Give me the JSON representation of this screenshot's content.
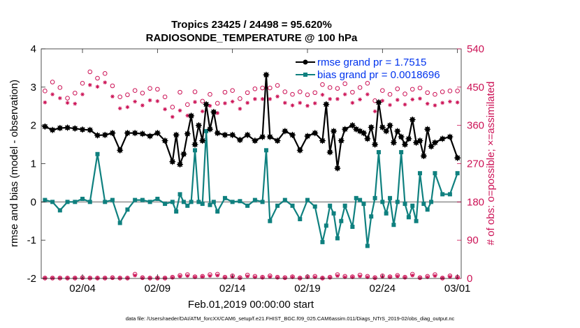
{
  "chart_data": {
    "type": "line",
    "title": "Tropics 23425 / 24498 = 95.620%",
    "subtitle": "RADIOSONDE_TEMPERATURE @ 100 hPa",
    "xlabel": "Feb.01,2019 00:00:00 start",
    "ylabel_left": "rmse and bias (model - observation)",
    "ylabel_right": "# of obs: o=possible; ×=assimilated",
    "footnote": "data file: /Users/raeder/DAI/ATM_forcXX/CAM6_setup/f.e21.FHIST_BGC.f09_025.CAM6assim.011/Diags_NTrS_2019-02/obs_diag_output.nc",
    "xticks": [
      "02/04",
      "02/09",
      "02/14",
      "02/19",
      "02/24",
      "03/01"
    ],
    "xtick_days": [
      3,
      8,
      13,
      18,
      23,
      28
    ],
    "xlim": [
      0.25,
      28.25
    ],
    "ylim_left": [
      -2,
      4
    ],
    "yticks_left": [
      "-2",
      "-1",
      "0",
      "1",
      "2",
      "3",
      "4"
    ],
    "ylim_right": [
      0,
      540
    ],
    "yticks_right": [
      "0",
      "90",
      "180",
      "270",
      "360",
      "450",
      "540"
    ],
    "colors": {
      "rmse": "#000000",
      "bias": "#0f807f",
      "obs": "#cc1155",
      "legend_text": "#0033ee",
      "zero_line": "#a6a6a6"
    },
    "legend": [
      {
        "name": "rmse grand pr = 1.7515",
        "color": "#000000"
      },
      {
        "name": "bias grand pr = 0.0018696",
        "color": "#0f807f"
      }
    ],
    "series": [
      {
        "name": "rmse",
        "x": [
          0.5,
          1,
          1.5,
          2,
          2.5,
          3,
          3.5,
          4,
          4.5,
          5,
          5.5,
          6,
          6.5,
          7,
          7.5,
          8,
          8.5,
          9,
          9.25,
          9.5,
          9.75,
          10,
          10.25,
          10.5,
          10.75,
          11,
          11.25,
          11.5,
          11.75,
          12,
          12.5,
          13,
          13.5,
          14,
          14.5,
          15,
          15.25,
          15.5,
          16,
          16.5,
          17,
          17.5,
          18,
          18.5,
          19,
          19.25,
          19.5,
          19.75,
          20,
          20.25,
          20.5,
          21,
          21.25,
          21.5,
          21.75,
          22,
          22.25,
          22.5,
          22.75,
          23,
          23.25,
          23.5,
          23.75,
          24,
          24.25,
          24.5,
          24.75,
          25,
          25.25,
          25.5,
          25.75,
          26,
          26.25,
          26.5,
          27,
          27.5,
          28
        ],
        "values": [
          1.97,
          1.88,
          1.93,
          1.94,
          1.92,
          1.89,
          1.88,
          1.74,
          1.75,
          1.8,
          1.35,
          1.8,
          1.8,
          1.78,
          1.72,
          1.8,
          1.6,
          1.05,
          1.75,
          0.98,
          1.25,
          1.78,
          2.25,
          1.5,
          2.0,
          1.6,
          2.55,
          1.9,
          2.35,
          1.8,
          1.75,
          1.75,
          1.62,
          1.75,
          1.6,
          1.7,
          3.32,
          1.7,
          1.6,
          1.85,
          1.75,
          1.35,
          1.72,
          1.8,
          1.6,
          2.55,
          1.3,
          1.85,
          0.88,
          1.6,
          1.9,
          2.0,
          1.9,
          1.85,
          1.8,
          1.65,
          1.95,
          1.5,
          2.6,
          1.95,
          1.85,
          2.0,
          1.55,
          1.85,
          1.7,
          1.5,
          1.65,
          2.15,
          1.55,
          1.6,
          1.2,
          1.9,
          1.45,
          1.55,
          1.65,
          1.7,
          1.15
        ]
      },
      {
        "name": "bias",
        "x": [
          0.5,
          1,
          1.5,
          2,
          2.5,
          3,
          3.5,
          4,
          4.5,
          5,
          5.5,
          6,
          6.5,
          7,
          7.5,
          8,
          8.5,
          9,
          9.25,
          9.5,
          9.75,
          10,
          10.25,
          10.5,
          10.75,
          11,
          11.25,
          11.5,
          11.75,
          12,
          12.5,
          13,
          13.5,
          14,
          14.5,
          15,
          15.25,
          15.5,
          16,
          16.5,
          17,
          17.5,
          18,
          18.5,
          19,
          19.25,
          19.5,
          19.75,
          20,
          20.25,
          20.5,
          21,
          21.25,
          21.5,
          21.75,
          22,
          22.25,
          22.5,
          22.75,
          23,
          23.25,
          23.5,
          23.75,
          24,
          24.25,
          24.5,
          24.75,
          25,
          25.25,
          25.5,
          25.75,
          26,
          26.25,
          26.5,
          27,
          27.5,
          28
        ],
        "values": [
          0.05,
          0.0,
          -0.22,
          0.0,
          0.0,
          0.08,
          0.0,
          1.25,
          0.0,
          0.05,
          -0.55,
          -0.2,
          0.05,
          0.05,
          0.0,
          0.08,
          -0.05,
          0.0,
          -0.25,
          0.2,
          0.0,
          -0.1,
          0.0,
          1.35,
          0.0,
          -0.05,
          1.85,
          -0.08,
          0.0,
          -0.25,
          0.1,
          0.0,
          0.02,
          -0.1,
          0.05,
          0.0,
          1.35,
          -0.5,
          -0.1,
          0.05,
          -0.1,
          -0.45,
          0.05,
          -0.12,
          -1.05,
          -0.62,
          -0.1,
          -0.3,
          -0.95,
          -0.5,
          -0.1,
          -0.65,
          0.1,
          0.05,
          -0.05,
          -1.15,
          -0.38,
          0.1,
          1.3,
          0.0,
          -0.3,
          0.1,
          -0.6,
          0.0,
          1.3,
          -0.05,
          -0.4,
          -0.1,
          -0.5,
          0.75,
          -0.05,
          -0.2,
          0.0,
          0.75,
          0.2,
          0.2,
          0.75
        ]
      },
      {
        "name": "possible",
        "axis": "right",
        "x": [
          0.5,
          1,
          1.5,
          2,
          2.5,
          3,
          3.5,
          4,
          4.5,
          5,
          5.5,
          6,
          6.5,
          7,
          7.5,
          8,
          8.5,
          9,
          9.5,
          10,
          10.5,
          11,
          11.5,
          12,
          12.5,
          13,
          13.5,
          14,
          14.5,
          15,
          15.5,
          16,
          16.5,
          17,
          17.5,
          18,
          18.5,
          19,
          19.5,
          20,
          20.5,
          21,
          21.5,
          22,
          22.5,
          23,
          23.5,
          24,
          24.5,
          25,
          25.5,
          26,
          26.5,
          27,
          27.5,
          28
        ],
        "values": [
          441,
          462,
          449,
          424,
          436,
          459,
          486,
          471,
          482,
          453,
          427,
          432,
          442,
          436,
          447,
          445,
          427,
          403,
          438,
          409,
          439,
          417,
          433,
          412,
          438,
          442,
          423,
          437,
          446,
          448,
          448,
          454,
          439,
          433,
          439,
          432,
          437,
          456,
          449,
          447,
          458,
          438,
          449,
          459,
          418,
          442,
          433,
          446,
          434,
          445,
          448,
          437,
          433,
          439,
          441,
          441
        ]
      },
      {
        "name": "assimilated",
        "axis": "right",
        "x": [
          0.5,
          1,
          1.5,
          2,
          2.5,
          3,
          3.5,
          4,
          4.5,
          5,
          5.5,
          6,
          6.5,
          7,
          7.5,
          8,
          8.5,
          9,
          9.5,
          10,
          10.5,
          11,
          11.5,
          12,
          12.5,
          13,
          13.5,
          14,
          14.5,
          15,
          15.5,
          16,
          16.5,
          17,
          17.5,
          18,
          18.5,
          19,
          19.5,
          20,
          20.5,
          21,
          21.5,
          22,
          22.5,
          23,
          23.5,
          24,
          24.5,
          25,
          25.5,
          26,
          26.5,
          27,
          27.5,
          28
        ],
        "values": [
          414,
          433,
          424,
          413,
          411,
          433,
          455,
          451,
          461,
          428,
          400,
          403,
          416,
          407,
          419,
          417,
          398,
          380,
          395,
          383,
          415,
          393,
          406,
          389,
          412,
          416,
          399,
          413,
          422,
          422,
          422,
          428,
          413,
          407,
          413,
          406,
          412,
          432,
          422,
          422,
          433,
          413,
          421,
          433,
          393,
          418,
          408,
          420,
          409,
          421,
          423,
          411,
          407,
          413,
          416,
          414
        ]
      }
    ],
    "bottom_obs_counts": {
      "x": [
        0.5,
        1,
        1.5,
        2,
        2.5,
        3,
        3.5,
        4,
        4.5,
        5,
        5.5,
        6,
        6.5,
        7,
        7.5,
        8,
        8.5,
        9,
        9.5,
        10,
        10.5,
        11,
        11.5,
        12,
        12.5,
        13,
        13.5,
        14,
        14.5,
        15,
        15.5,
        16,
        16.5,
        17,
        17.5,
        18,
        18.5,
        19,
        19.5,
        20,
        20.5,
        21,
        21.5,
        22,
        22.5,
        23,
        23.5,
        24,
        24.5,
        25,
        25.5,
        26,
        26.5,
        27,
        27.5,
        28
      ],
      "possible": [
        1,
        1,
        1,
        1,
        1,
        2,
        1,
        1,
        1,
        2,
        1,
        1,
        10,
        2,
        1,
        1,
        1,
        3,
        7,
        9,
        4,
        5,
        9,
        10,
        3,
        6,
        2,
        8,
        5,
        3,
        6,
        3,
        2,
        4,
        1,
        4,
        5,
        1,
        3,
        9,
        5,
        4,
        8,
        5,
        2,
        6,
        4,
        7,
        3,
        10,
        2,
        5,
        9,
        1,
        6,
        3
      ],
      "assimilated": [
        1,
        1,
        1,
        1,
        1,
        1,
        1,
        1,
        1,
        1,
        1,
        1,
        7,
        1,
        1,
        1,
        1,
        2,
        5,
        6,
        3,
        4,
        6,
        7,
        2,
        4,
        1,
        5,
        3,
        2,
        4,
        2,
        1,
        3,
        1,
        3,
        3,
        1,
        2,
        6,
        3,
        3,
        5,
        3,
        1,
        4,
        3,
        5,
        2,
        7,
        1,
        3,
        6,
        1,
        4,
        2
      ]
    }
  }
}
